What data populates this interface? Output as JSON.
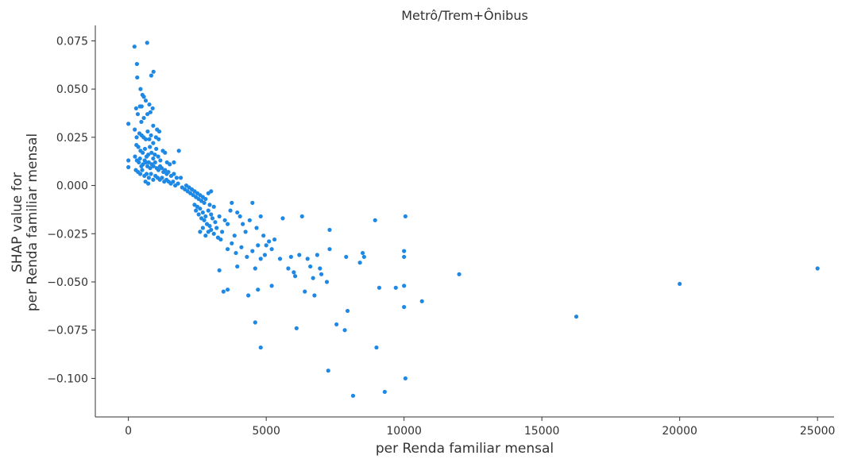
{
  "chart_data": {
    "type": "scatter",
    "title": "Metrô/Trem+Ônibus",
    "xlabel": "per Renda familiar mensal",
    "ylabel_lines": [
      "SHAP value for",
      "per Renda familiar mensal"
    ],
    "xlim": [
      -1200,
      25600
    ],
    "ylim": [
      -0.12,
      0.083
    ],
    "x_ticks": [
      0,
      5000,
      10000,
      15000,
      20000,
      25000
    ],
    "x_tick_labels": [
      "0",
      "5000",
      "10000",
      "15000",
      "20000",
      "25000"
    ],
    "y_ticks": [
      0.075,
      0.05,
      0.025,
      0.0,
      -0.025,
      -0.05,
      -0.075,
      -0.1
    ],
    "y_tick_labels": [
      "0.075",
      "0.050",
      "0.025",
      "0.000",
      "−0.025",
      "−0.050",
      "−0.075",
      "−0.100"
    ],
    "grid": false,
    "marker_color": "#1e88e5",
    "points": [
      [
        0,
        0.032
      ],
      [
        0,
        0.013
      ],
      [
        0,
        0.0095
      ],
      [
        220,
        0.072
      ],
      [
        680,
        0.074
      ],
      [
        310,
        0.063
      ],
      [
        320,
        0.056
      ],
      [
        830,
        0.057
      ],
      [
        910,
        0.059
      ],
      [
        440,
        0.05
      ],
      [
        510,
        0.047
      ],
      [
        560,
        0.046
      ],
      [
        630,
        0.044
      ],
      [
        280,
        0.04
      ],
      [
        420,
        0.041
      ],
      [
        480,
        0.041
      ],
      [
        760,
        0.042
      ],
      [
        880,
        0.04
      ],
      [
        340,
        0.037
      ],
      [
        560,
        0.035
      ],
      [
        690,
        0.037
      ],
      [
        800,
        0.038
      ],
      [
        470,
        0.033
      ],
      [
        900,
        0.031
      ],
      [
        1040,
        0.029
      ],
      [
        1120,
        0.028
      ],
      [
        230,
        0.029
      ],
      [
        300,
        0.025
      ],
      [
        400,
        0.027
      ],
      [
        480,
        0.026
      ],
      [
        550,
        0.025
      ],
      [
        630,
        0.024
      ],
      [
        700,
        0.028
      ],
      [
        760,
        0.024
      ],
      [
        820,
        0.026
      ],
      [
        900,
        0.022
      ],
      [
        1000,
        0.025
      ],
      [
        1100,
        0.024
      ],
      [
        1250,
        0.018
      ],
      [
        1330,
        0.017
      ],
      [
        1830,
        0.018
      ],
      [
        290,
        0.021
      ],
      [
        360,
        0.02
      ],
      [
        440,
        0.018
      ],
      [
        520,
        0.017
      ],
      [
        600,
        0.019
      ],
      [
        660,
        0.015
      ],
      [
        720,
        0.016
      ],
      [
        780,
        0.02
      ],
      [
        840,
        0.017
      ],
      [
        900,
        0.014
      ],
      [
        960,
        0.016
      ],
      [
        1010,
        0.019
      ],
      [
        1080,
        0.015
      ],
      [
        1160,
        0.013
      ],
      [
        1400,
        0.012
      ],
      [
        1500,
        0.011
      ],
      [
        1650,
        0.012
      ],
      [
        240,
        0.015
      ],
      [
        310,
        0.013
      ],
      [
        380,
        0.012
      ],
      [
        420,
        0.014
      ],
      [
        470,
        0.01
      ],
      [
        530,
        0.011
      ],
      [
        590,
        0.013
      ],
      [
        640,
        0.012
      ],
      [
        690,
        0.01
      ],
      [
        740,
        0.012
      ],
      [
        790,
        0.009
      ],
      [
        850,
        0.011
      ],
      [
        910,
        0.01
      ],
      [
        970,
        0.012
      ],
      [
        1030,
        0.009
      ],
      [
        1090,
        0.008
      ],
      [
        1150,
        0.01
      ],
      [
        1210,
        0.009
      ],
      [
        1270,
        0.007
      ],
      [
        1330,
        0.008
      ],
      [
        1390,
        0.006
      ],
      [
        1450,
        0.007
      ],
      [
        1550,
        0.005
      ],
      [
        1650,
        0.006
      ],
      [
        1750,
        0.004
      ],
      [
        1900,
        0.004
      ],
      [
        270,
        0.008
      ],
      [
        350,
        0.007
      ],
      [
        430,
        0.006
      ],
      [
        500,
        0.008
      ],
      [
        580,
        0.005
      ],
      [
        660,
        0.006
      ],
      [
        740,
        0.004
      ],
      [
        820,
        0.006
      ],
      [
        900,
        0.003
      ],
      [
        980,
        0.005
      ],
      [
        1060,
        0.004
      ],
      [
        1140,
        0.003
      ],
      [
        1220,
        0.004
      ],
      [
        1300,
        0.002
      ],
      [
        1380,
        0.003
      ],
      [
        1460,
        0.002
      ],
      [
        1540,
        0.001
      ],
      [
        1620,
        0.002
      ],
      [
        620,
        0.002
      ],
      [
        720,
        0.001
      ],
      [
        1700,
        0.0
      ],
      [
        1800,
        0.001
      ],
      [
        1950,
        -0.001
      ],
      [
        2050,
        -0.002
      ],
      [
        2100,
        0.0
      ],
      [
        2150,
        -0.003
      ],
      [
        2200,
        -0.001
      ],
      [
        2250,
        -0.004
      ],
      [
        2300,
        -0.002
      ],
      [
        2350,
        -0.005
      ],
      [
        2400,
        -0.003
      ],
      [
        2450,
        -0.006
      ],
      [
        2500,
        -0.004
      ],
      [
        2550,
        -0.007
      ],
      [
        2600,
        -0.005
      ],
      [
        2650,
        -0.008
      ],
      [
        2700,
        -0.006
      ],
      [
        2750,
        -0.009
      ],
      [
        2800,
        -0.007
      ],
      [
        2900,
        -0.004
      ],
      [
        2950,
        -0.01
      ],
      [
        3000,
        -0.003
      ],
      [
        2400,
        -0.01
      ],
      [
        2450,
        -0.013
      ],
      [
        2500,
        -0.011
      ],
      [
        2550,
        -0.015
      ],
      [
        2600,
        -0.012
      ],
      [
        2650,
        -0.017
      ],
      [
        2700,
        -0.014
      ],
      [
        2750,
        -0.018
      ],
      [
        2800,
        -0.016
      ],
      [
        2850,
        -0.02
      ],
      [
        2900,
        -0.013
      ],
      [
        2950,
        -0.021
      ],
      [
        3000,
        -0.015
      ],
      [
        3050,
        -0.017
      ],
      [
        3100,
        -0.011
      ],
      [
        3150,
        -0.019
      ],
      [
        3200,
        -0.022
      ],
      [
        3300,
        -0.016
      ],
      [
        3400,
        -0.024
      ],
      [
        3500,
        -0.018
      ],
      [
        3600,
        -0.02
      ],
      [
        3700,
        -0.013
      ],
      [
        3750,
        -0.009
      ],
      [
        3850,
        -0.026
      ],
      [
        3950,
        -0.014
      ],
      [
        4050,
        -0.016
      ],
      [
        4150,
        -0.02
      ],
      [
        4250,
        -0.024
      ],
      [
        4400,
        -0.018
      ],
      [
        4500,
        -0.009
      ],
      [
        4650,
        -0.022
      ],
      [
        4800,
        -0.016
      ],
      [
        4900,
        -0.026
      ],
      [
        5000,
        -0.031
      ],
      [
        2600,
        -0.024
      ],
      [
        2700,
        -0.022
      ],
      [
        2800,
        -0.026
      ],
      [
        2900,
        -0.024
      ],
      [
        3000,
        -0.023
      ],
      [
        3100,
        -0.025
      ],
      [
        3250,
        -0.027
      ],
      [
        3350,
        -0.028
      ],
      [
        3600,
        -0.033
      ],
      [
        3750,
        -0.03
      ],
      [
        3900,
        -0.035
      ],
      [
        4100,
        -0.032
      ],
      [
        4300,
        -0.037
      ],
      [
        4500,
        -0.034
      ],
      [
        4700,
        -0.031
      ],
      [
        4800,
        -0.038
      ],
      [
        4950,
        -0.036
      ],
      [
        5100,
        -0.029
      ],
      [
        5200,
        -0.033
      ],
      [
        5300,
        -0.028
      ],
      [
        3300,
        -0.044
      ],
      [
        3450,
        -0.055
      ],
      [
        3600,
        -0.054
      ],
      [
        3950,
        -0.042
      ],
      [
        4350,
        -0.057
      ],
      [
        4600,
        -0.043
      ],
      [
        4700,
        -0.054
      ],
      [
        5200,
        -0.052
      ],
      [
        5500,
        -0.038
      ],
      [
        5600,
        -0.017
      ],
      [
        5800,
        -0.043
      ],
      [
        5900,
        -0.037
      ],
      [
        6000,
        -0.045
      ],
      [
        6050,
        -0.047
      ],
      [
        6200,
        -0.036
      ],
      [
        6300,
        -0.016
      ],
      [
        6400,
        -0.055
      ],
      [
        6500,
        -0.038
      ],
      [
        6600,
        -0.042
      ],
      [
        6700,
        -0.048
      ],
      [
        6750,
        -0.057
      ],
      [
        6850,
        -0.036
      ],
      [
        6950,
        -0.043
      ],
      [
        7000,
        -0.046
      ],
      [
        7200,
        -0.05
      ],
      [
        7300,
        -0.033
      ],
      [
        7300,
        -0.023
      ],
      [
        7900,
        -0.037
      ],
      [
        8400,
        -0.04
      ],
      [
        8500,
        -0.035
      ],
      [
        8550,
        -0.037
      ],
      [
        8950,
        -0.018
      ],
      [
        9100,
        -0.053
      ],
      [
        9700,
        -0.053
      ],
      [
        10000,
        -0.034
      ],
      [
        10000,
        -0.037
      ],
      [
        10000,
        -0.052
      ],
      [
        10050,
        -0.016
      ],
      [
        4600,
        -0.071
      ],
      [
        4800,
        -0.084
      ],
      [
        6100,
        -0.074
      ],
      [
        7250,
        -0.096
      ],
      [
        7550,
        -0.072
      ],
      [
        7850,
        -0.075
      ],
      [
        7950,
        -0.065
      ],
      [
        8150,
        -0.109
      ],
      [
        9000,
        -0.084
      ],
      [
        9300,
        -0.107
      ],
      [
        10000,
        -0.063
      ],
      [
        10050,
        -0.1
      ],
      [
        10650,
        -0.06
      ],
      [
        12000,
        -0.046
      ],
      [
        16250,
        -0.068
      ],
      [
        20000,
        -0.051
      ],
      [
        25000,
        -0.043
      ]
    ]
  }
}
